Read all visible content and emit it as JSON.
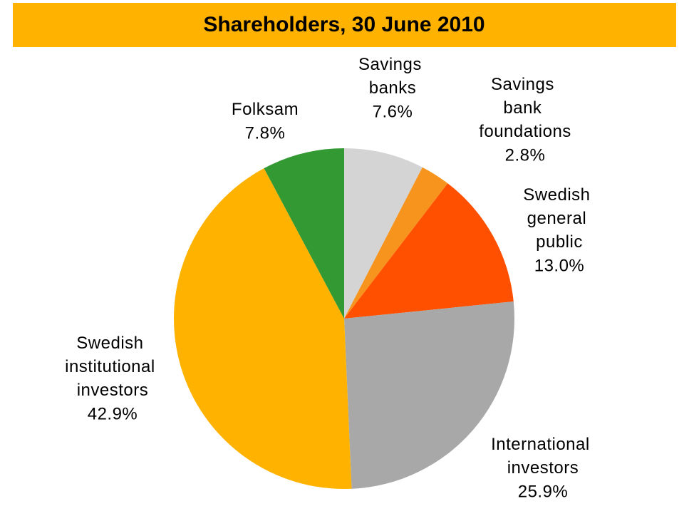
{
  "chart_data": {
    "type": "pie",
    "title": "Shareholders, 30 June 2010",
    "categories": [
      "Savings banks",
      "Savings bank foundations",
      "Swedish general public",
      "International investors",
      "Swedish institutional investors",
      "Folksam"
    ],
    "values": [
      7.6,
      2.8,
      13.0,
      25.9,
      42.9,
      7.8
    ],
    "value_labels": [
      "7.6%",
      "2.8%",
      "13.0%",
      "25.9%",
      "42.9%",
      "7.8%"
    ],
    "colors": [
      "#d4d4d4",
      "#f7941d",
      "#ff5000",
      "#a8a8a8",
      "#ffb300",
      "#339933"
    ]
  }
}
